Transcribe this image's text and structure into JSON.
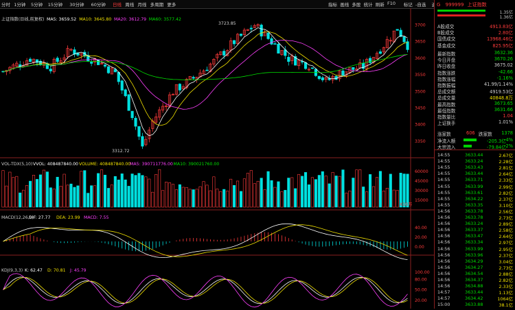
{
  "toolbar": {
    "periods": [
      "分时",
      "1分钟",
      "5分钟",
      "15分钟",
      "30分钟",
      "60分钟",
      "日线",
      "周线",
      "月线",
      "多周期",
      "更多"
    ],
    "active_period": "日线",
    "right_items": [
      "指标",
      "画线",
      "多股",
      "统计",
      "刷新",
      "F10",
      "标记",
      "-自选",
      "返回"
    ]
  },
  "main_chart": {
    "title": "上证指数(日线,前复权)",
    "ma_labels": [
      {
        "text": "MA5: 3659.52",
        "color": "#ffffff"
      },
      {
        "text": "MA10: 3645.80",
        "color": "#f0e000"
      },
      {
        "text": "MA20: 3612.79",
        "color": "#ff40ff"
      },
      {
        "text": "MA60: 3577.42",
        "color": "#00e000"
      }
    ],
    "y_ticks": [
      "3700",
      "3650",
      "3600",
      "3550",
      "3500",
      "3450",
      "3400",
      "3350"
    ],
    "high_label": "3723.85",
    "low_label": "3312.72"
  },
  "volume_panel": {
    "title": "VOL-TDX(5,10)",
    "labels": [
      {
        "text": "VVOL: 408487840.00",
        "color": "#ffffff"
      },
      {
        "text": "VOLUME: 408487840.00",
        "color": "#f0e000"
      },
      {
        "text": "MA5: 390711776.00",
        "color": "#ff40ff"
      },
      {
        "text": "MA10: 390021760.00",
        "color": "#00e000"
      }
    ],
    "y_ticks": [
      "60000",
      "45000",
      "30000",
      "15000"
    ],
    "unit": "X10万"
  },
  "macd_panel": {
    "title": "MACD(12,26,9)",
    "labels": [
      {
        "text": "DIF: 27.77",
        "color": "#ffffff"
      },
      {
        "text": "DEA: 23.99",
        "color": "#f0e000"
      },
      {
        "text": "MACD: 7.55",
        "color": "#ff40ff"
      }
    ],
    "y_ticks": [
      "40.00",
      "20.00",
      "0.00"
    ]
  },
  "kdj_panel": {
    "title": "KDJ(9,3,3)",
    "labels": [
      {
        "text": "K: 62.47",
        "color": "#ffffff"
      },
      {
        "text": "D: 70.81",
        "color": "#f0e000"
      },
      {
        "text": "J: 45.79",
        "color": "#ff40ff"
      }
    ],
    "y_ticks": [
      "100.00",
      "80.00",
      "50.00",
      "20.00"
    ]
  },
  "side": {
    "header_code": "999999",
    "header_name": "上证指数",
    "header_prefix": "G",
    "bar_val1": "1.35亿",
    "bar_val2": "1.36亿",
    "stats": [
      {
        "k": "A股成交",
        "v": "4913.83亿",
        "c": "up"
      },
      {
        "k": "B股成交",
        "v": "2.80亿",
        "c": "up"
      },
      {
        "k": "国债成交",
        "v": "13968.46亿",
        "c": "up"
      },
      {
        "k": "基金成交",
        "v": "825.95亿",
        "c": "up"
      }
    ],
    "quotes": [
      {
        "k": "最新指数",
        "v": "3632.36",
        "c": "dn"
      },
      {
        "k": "今日开盘",
        "v": "3670.26",
        "c": "dn"
      },
      {
        "k": "昨日收盘",
        "v": "3675.02",
        "c": "wh"
      },
      {
        "k": "指数涨跌",
        "v": "-42.66",
        "c": "dn"
      },
      {
        "k": "指数涨幅",
        "v": "-1.16%",
        "c": "dn"
      },
      {
        "k": "指数振幅",
        "v": "41.99/1.14%",
        "c": "wh"
      },
      {
        "k": "总成交额",
        "v": "4919.53亿",
        "c": "wh"
      },
      {
        "k": "总成交量",
        "v": "40848.8万",
        "c": "yl"
      },
      {
        "k": "最高指数",
        "v": "3673.65",
        "c": "dn"
      },
      {
        "k": "最低指数",
        "v": "3631.66",
        "c": "dn"
      },
      {
        "k": "指数量比",
        "v": "1.04",
        "c": "up"
      },
      {
        "k": "上证换手",
        "v": "1.01%",
        "c": "wh"
      }
    ],
    "updown_label_up": "涨家数",
    "updown_up": "606",
    "updown_label_dn": "跌家数",
    "updown_dn": "1378",
    "flows": [
      {
        "k": "净流入额",
        "v": "-205.3亿",
        "p": "-4%",
        "bar": 0.55
      },
      {
        "k": "大宗流入",
        "v": "-79.84亿",
        "p": "-2%",
        "bar": 0.35
      }
    ],
    "ticks": [
      {
        "t": "14:55",
        "p": "3633.44",
        "v": "2.67亿"
      },
      {
        "t": "14:55",
        "p": "3633.24",
        "v": "2.28亿"
      },
      {
        "t": "14:55",
        "p": "3633.43",
        "v": "2.81亿"
      },
      {
        "t": "14:55",
        "p": "3633.44",
        "v": "2.64亿"
      },
      {
        "t": "14:55",
        "p": "3633.71",
        "v": "2.33亿"
      },
      {
        "t": "14:55",
        "p": "3633.99",
        "v": "2.99亿"
      },
      {
        "t": "14:55",
        "p": "3633.61",
        "v": "2.82亿"
      },
      {
        "t": "14:55",
        "p": "3634.22",
        "v": "2.37亿"
      },
      {
        "t": "14:55",
        "p": "3633.35",
        "v": "3.10亿"
      },
      {
        "t": "14:56",
        "p": "3633.78",
        "v": "2.56亿"
      },
      {
        "t": "14:56",
        "p": "3633.78",
        "v": "2.73亿"
      },
      {
        "t": "14:56",
        "p": "3633.24",
        "v": "2.89亿"
      },
      {
        "t": "14:56",
        "p": "3633.37",
        "v": "2.58亿"
      },
      {
        "t": "14:56",
        "p": "3633.47",
        "v": "2.64亿"
      },
      {
        "t": "14:56",
        "p": "3633.34",
        "v": "2.97亿"
      },
      {
        "t": "14:56",
        "p": "3633.99",
        "v": "2.95亿"
      },
      {
        "t": "14:56",
        "p": "3633.96",
        "v": "2.37亿"
      },
      {
        "t": "14:56",
        "p": "3634.29",
        "v": "3.04亿"
      },
      {
        "t": "14:56",
        "p": "3634.27",
        "v": "2.73亿"
      },
      {
        "t": "14:56",
        "p": "3634.54",
        "v": "2.88亿"
      },
      {
        "t": "14:56",
        "p": "3634.37",
        "v": "2.82亿"
      },
      {
        "t": "14:56",
        "p": "3634.88",
        "v": "2.33亿"
      },
      {
        "t": "14:57",
        "p": "3633.44",
        "v": "1.13亿"
      },
      {
        "t": "14:57",
        "p": "3634.42",
        "v": "1064亿"
      },
      {
        "t": "15:00",
        "p": "3633.88",
        "v": "38.1亿"
      }
    ]
  }
}
